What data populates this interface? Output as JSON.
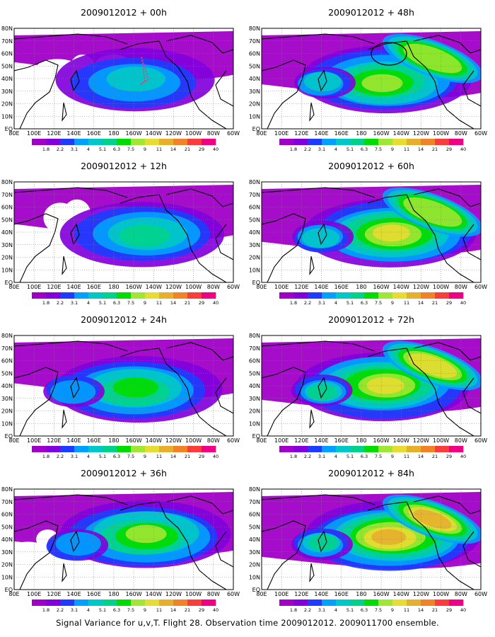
{
  "panels": [
    {
      "title": "2009012012 + 00h",
      "forecast_hour": 0,
      "intensity": 0.25
    },
    {
      "title": "2009012012 + 48h",
      "forecast_hour": 48,
      "intensity": 0.65
    },
    {
      "title": "2009012012 + 12h",
      "forecast_hour": 12,
      "intensity": 0.4
    },
    {
      "title": "2009012012 + 60h",
      "forecast_hour": 60,
      "intensity": 0.72
    },
    {
      "title": "2009012012 + 24h",
      "forecast_hour": 24,
      "intensity": 0.5
    },
    {
      "title": "2009012012 + 72h",
      "forecast_hour": 72,
      "intensity": 0.8
    },
    {
      "title": "2009012012 + 36h",
      "forecast_hour": 36,
      "intensity": 0.58
    },
    {
      "title": "2009012012 + 84h",
      "forecast_hour": 84,
      "intensity": 0.86
    }
  ],
  "lat_labels": [
    "EQ",
    "10N",
    "20N",
    "30N",
    "40N",
    "50N",
    "60N",
    "70N",
    "80N"
  ],
  "lon_labels": [
    "80E",
    "100E",
    "120E",
    "140E",
    "160E",
    "180",
    "160W",
    "140W",
    "120W",
    "100W",
    "80W",
    "60W"
  ],
  "colorbar": {
    "labels": [
      "1.8",
      "2.2",
      "3.1",
      "4",
      "5.1",
      "6.3",
      "7.5",
      "9",
      "11",
      "14",
      "21",
      "29",
      "40"
    ],
    "colors": [
      "#a000c8",
      "#8200dc",
      "#1e3cff",
      "#00a0ff",
      "#00c8c8",
      "#00d28c",
      "#00dc00",
      "#a0e632",
      "#e6dc32",
      "#e6af2d",
      "#f08228",
      "#fa3c3c",
      "#f00082"
    ]
  },
  "caption": "Signal Variance for u,v,T. Flight 28. Observation time 2009012012. 2009011700 ensemble."
}
